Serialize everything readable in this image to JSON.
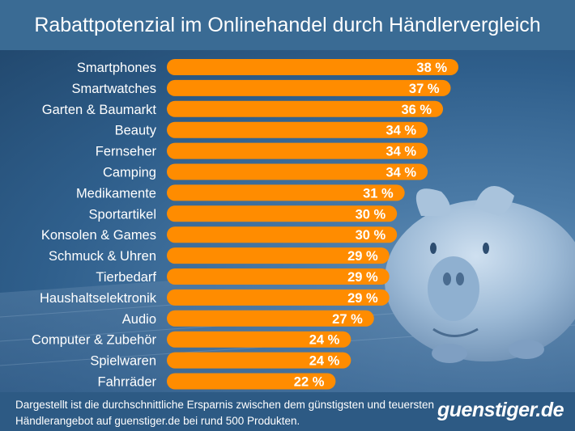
{
  "header": {
    "title": "Rabattpotenzial im Onlinehandel durch Händlervergleich"
  },
  "footer": {
    "note": "Dargestellt ist die durchschnittliche Ersparnis zwischen dem günstigsten und teuersten Händlerangebot auf guenstiger.de bei rund 500 Produkten.",
    "logo": "guenstiger.de"
  },
  "colors": {
    "bar": "#ff8c00",
    "label": "#ffffff",
    "header": "#3a6b94",
    "footer": "#2d5a84"
  },
  "chart_data": {
    "type": "bar",
    "orientation": "horizontal",
    "title": "Rabattpotenzial im Onlinehandel durch Händlervergleich",
    "categories": [
      "Smartphones",
      "Smartwatches",
      "Garten & Baumarkt",
      "Beauty",
      "Fernseher",
      "Camping",
      "Medikamente",
      "Sportartikel",
      "Konsolen & Games",
      "Schmuck & Uhren",
      "Tierbedarf",
      "Haushaltselektronik",
      "Audio",
      "Computer & Zubehör",
      "Spielwaren",
      "Fahrräder"
    ],
    "values": [
      38,
      37,
      36,
      34,
      34,
      34,
      31,
      30,
      30,
      29,
      29,
      29,
      27,
      24,
      24,
      22
    ],
    "value_labels": [
      "38 %",
      "37 %",
      "36 %",
      "34 %",
      "34 %",
      "34 %",
      "31 %",
      "30 %",
      "30 %",
      "29 %",
      "29 %",
      "29 %",
      "27 %",
      "24 %",
      "24 %",
      "22 %"
    ],
    "xlim": [
      0,
      38
    ],
    "grid": false,
    "legend": "none"
  }
}
